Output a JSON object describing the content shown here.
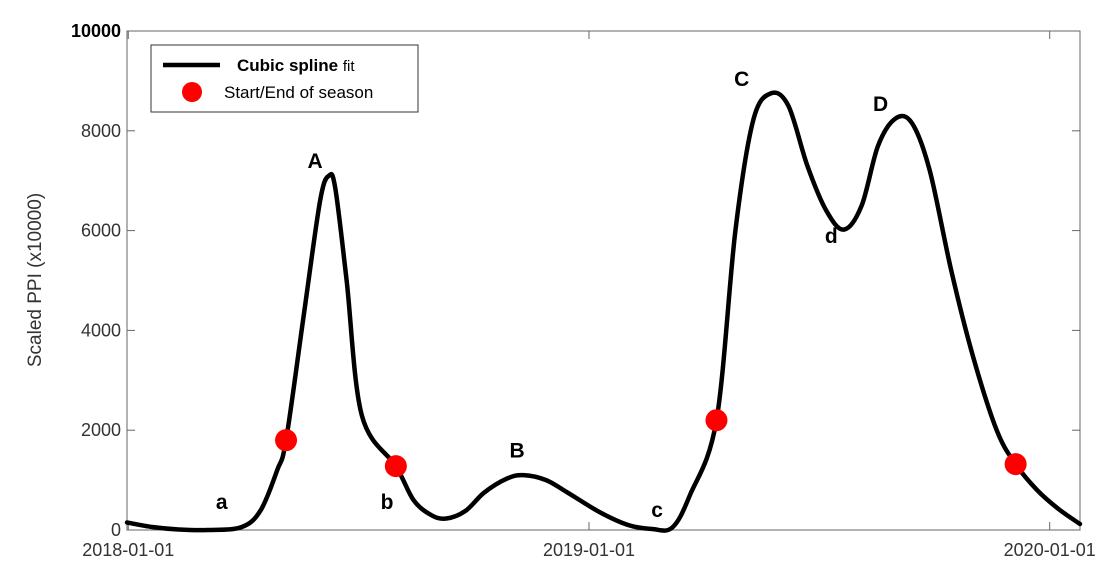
{
  "chart_data": {
    "type": "line",
    "ylabel": "Scaled PPI (x10000)",
    "xlabel": "",
    "ylim": [
      0,
      10000
    ],
    "xlim": [
      "2017-12-31",
      "2020-01-25"
    ],
    "yticks": [
      0,
      2000,
      4000,
      6000,
      8000,
      10000
    ],
    "ytick_labels": [
      "0",
      "2000",
      "4000",
      "6000",
      "8000",
      "10000"
    ],
    "xticks": [
      "2018-01-01",
      "2019-01-01",
      "2020-01-01"
    ],
    "grid": false,
    "legend": {
      "placement": "top-left",
      "entries": [
        {
          "label_bold": "Cubic spline",
          "label_rest": "fit",
          "marker": "line",
          "color": "#000000"
        },
        {
          "label": "Start/End of season",
          "marker": "circle",
          "color": "#ff0000"
        }
      ]
    },
    "series": [
      {
        "name": "Cubic spline fit",
        "color": "#000000",
        "points": [
          [
            "2017-12-31",
            150
          ],
          [
            "2018-01-20",
            60
          ],
          [
            "2018-02-10",
            10
          ],
          [
            "2018-03-05",
            0
          ],
          [
            "2018-04-01",
            60
          ],
          [
            "2018-04-16",
            400
          ],
          [
            "2018-04-29",
            1200
          ],
          [
            "2018-05-06",
            1800
          ],
          [
            "2018-05-20",
            4300
          ],
          [
            "2018-06-02",
            6600
          ],
          [
            "2018-06-09",
            7100
          ],
          [
            "2018-06-14",
            6850
          ],
          [
            "2018-06-23",
            5000
          ],
          [
            "2018-07-05",
            2300
          ],
          [
            "2018-08-01",
            1280
          ],
          [
            "2018-08-15",
            600
          ],
          [
            "2018-08-29",
            300
          ],
          [
            "2018-09-10",
            230
          ],
          [
            "2018-09-25",
            380
          ],
          [
            "2018-10-10",
            750
          ],
          [
            "2018-10-28",
            1030
          ],
          [
            "2018-11-10",
            1100
          ],
          [
            "2018-11-28",
            1000
          ],
          [
            "2018-12-15",
            750
          ],
          [
            "2019-01-10",
            350
          ],
          [
            "2019-02-01",
            100
          ],
          [
            "2019-02-20",
            20
          ],
          [
            "2019-03-08",
            50
          ],
          [
            "2019-03-22",
            700
          ],
          [
            "2019-04-12",
            2200
          ],
          [
            "2019-04-27",
            6000
          ],
          [
            "2019-05-11",
            8200
          ],
          [
            "2019-05-25",
            8750
          ],
          [
            "2019-06-08",
            8500
          ],
          [
            "2019-06-23",
            7300
          ],
          [
            "2019-07-08",
            6400
          ],
          [
            "2019-07-22",
            6020
          ],
          [
            "2019-08-05",
            6500
          ],
          [
            "2019-08-18",
            7700
          ],
          [
            "2019-09-01",
            8250
          ],
          [
            "2019-09-14",
            8150
          ],
          [
            "2019-09-28",
            7200
          ],
          [
            "2019-10-15",
            5200
          ],
          [
            "2019-11-01",
            3500
          ],
          [
            "2019-11-20",
            2000
          ],
          [
            "2019-12-05",
            1320
          ],
          [
            "2019-12-22",
            800
          ],
          [
            "2020-01-08",
            420
          ],
          [
            "2020-01-25",
            120
          ]
        ]
      }
    ],
    "season_markers": [
      {
        "x": "2018-05-06",
        "y": 1800
      },
      {
        "x": "2018-08-01",
        "y": 1280
      },
      {
        "x": "2019-04-12",
        "y": 2200
      },
      {
        "x": "2019-12-05",
        "y": 1320
      }
    ],
    "annotations": [
      {
        "text": "A",
        "x": "2018-05-29",
        "y": 7250
      },
      {
        "text": "B",
        "x": "2018-11-05",
        "y": 1450
      },
      {
        "text": "C",
        "x": "2019-05-02",
        "y": 8900
      },
      {
        "text": "D",
        "x": "2019-08-20",
        "y": 8400
      },
      {
        "text": "a",
        "x": "2018-03-16",
        "y": 420
      },
      {
        "text": "b",
        "x": "2018-07-25",
        "y": 420
      },
      {
        "text": "c",
        "x": "2019-02-24",
        "y": 260
      },
      {
        "text": "d",
        "x": "2019-07-12",
        "y": 5750
      }
    ]
  }
}
